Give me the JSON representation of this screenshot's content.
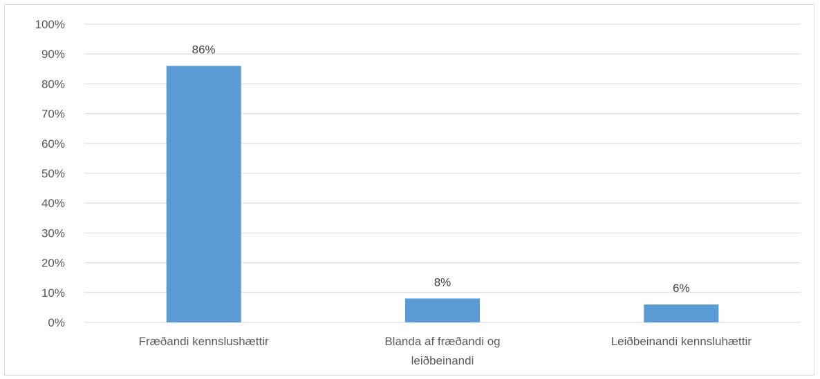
{
  "chart_data": {
    "type": "bar",
    "categories": [
      [
        "Fræðandi kennslushættir"
      ],
      [
        "Blanda af fræðandi og",
        "leiðbeinandi"
      ],
      [
        "Leiðbeinandi kennsluhættir"
      ]
    ],
    "values": [
      86,
      8,
      6
    ],
    "data_labels": [
      "86%",
      "8%",
      "6%"
    ],
    "yticks": [
      "0%",
      "10%",
      "20%",
      "30%",
      "40%",
      "50%",
      "60%",
      "70%",
      "80%",
      "90%",
      "100%"
    ],
    "ylim": [
      0,
      100
    ],
    "grid": true,
    "legend": "none",
    "title": "",
    "xlabel": "",
    "ylabel": "",
    "bar_color": "#5b9bd5",
    "grid_color": "#d9d9d9"
  }
}
